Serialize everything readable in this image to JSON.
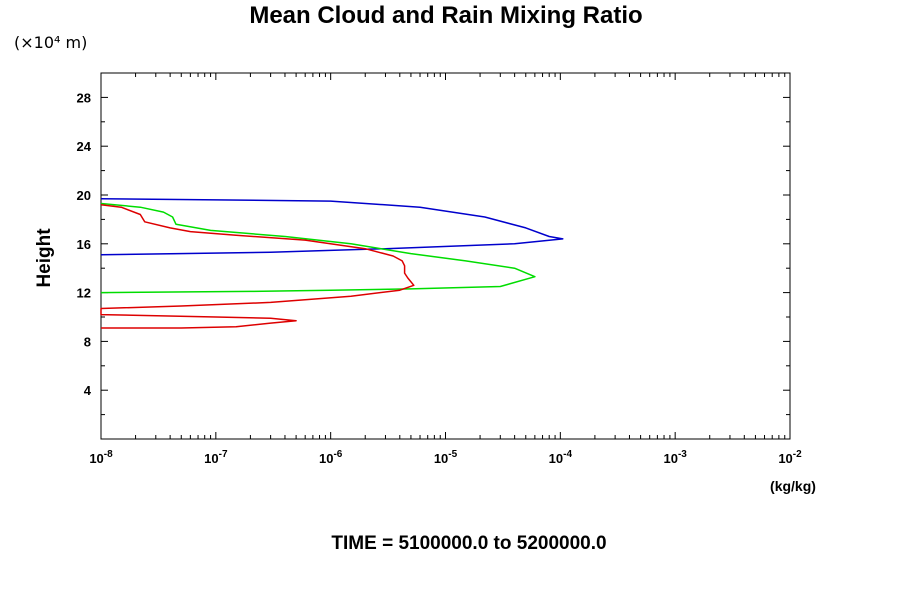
{
  "chart_data": {
    "type": "line",
    "title": "Mean Cloud and Rain Mixing Ratio",
    "y_unit": "(×10⁴ m)",
    "ylabel": "Height",
    "x_unit": "(kg/kg)",
    "x_scale": "log",
    "footer": "TIME = 5100000.0 to 5200000.0",
    "xlim": [
      1e-08,
      0.01
    ],
    "ylim": [
      0,
      30
    ],
    "x_ticks": [
      {
        "base": "10",
        "exp": "-8",
        "value": 1e-08
      },
      {
        "base": "10",
        "exp": "-7",
        "value": 1e-07
      },
      {
        "base": "10",
        "exp": "-6",
        "value": 1e-06
      },
      {
        "base": "10",
        "exp": "-5",
        "value": 1e-05
      },
      {
        "base": "10",
        "exp": "-4",
        "value": 0.0001
      },
      {
        "base": "10",
        "exp": "-3",
        "value": 0.001
      },
      {
        "base": "10",
        "exp": "-2",
        "value": 0.01
      }
    ],
    "y_ticks": [
      {
        "label": "4",
        "value": 4
      },
      {
        "label": "8",
        "value": 8
      },
      {
        "label": "12",
        "value": 12
      },
      {
        "label": "16",
        "value": 16
      },
      {
        "label": "20",
        "value": 20
      },
      {
        "label": "24",
        "value": 24
      },
      {
        "label": "28",
        "value": 28
      }
    ],
    "series": [
      {
        "color": "#0000cc",
        "points": [
          [
            1e-08,
            19.7
          ],
          [
            1e-06,
            19.5
          ],
          [
            6e-06,
            19.0
          ],
          [
            2.2e-05,
            18.2
          ],
          [
            5e-05,
            17.3
          ],
          [
            8e-05,
            16.6
          ],
          [
            0.000105,
            16.4
          ],
          [
            4e-05,
            16.0
          ],
          [
            3e-06,
            15.6
          ],
          [
            3e-07,
            15.3
          ],
          [
            1e-08,
            15.1
          ]
        ]
      },
      {
        "color": "#00dd00",
        "points": [
          [
            1e-08,
            19.3
          ],
          [
            2.2e-08,
            19.0
          ],
          [
            3.5e-08,
            18.6
          ],
          [
            4.2e-08,
            18.2
          ],
          [
            4.5e-08,
            17.6
          ],
          [
            9e-08,
            17.1
          ],
          [
            4e-07,
            16.6
          ],
          [
            1.5e-06,
            16.0
          ],
          [
            5e-06,
            15.2
          ],
          [
            1.5e-05,
            14.6
          ],
          [
            4e-05,
            14.0
          ],
          [
            6e-05,
            13.3
          ],
          [
            3e-05,
            12.5
          ],
          [
            5e-06,
            12.3
          ],
          [
            1e-06,
            12.2
          ],
          [
            2e-07,
            12.1
          ],
          [
            1e-08,
            12.0
          ]
        ]
      },
      {
        "color": "#dd0000",
        "points": [
          [
            1e-08,
            19.2
          ],
          [
            1.5e-08,
            19.0
          ],
          [
            2.2e-08,
            18.4
          ],
          [
            2.4e-08,
            17.8
          ],
          [
            4e-08,
            17.3
          ],
          [
            6e-08,
            17.0
          ],
          [
            1.5e-07,
            16.7
          ],
          [
            6e-07,
            16.3
          ],
          [
            2e-06,
            15.6
          ],
          [
            3.5e-06,
            15.0
          ],
          [
            4.2e-06,
            14.6
          ],
          [
            4.4e-06,
            14.2
          ],
          [
            4.4e-06,
            13.6
          ],
          [
            4.7e-06,
            13.2
          ],
          [
            5.3e-06,
            12.6
          ],
          [
            4e-06,
            12.2
          ],
          [
            1.5e-06,
            11.7
          ],
          [
            3e-07,
            11.2
          ],
          [
            5e-08,
            10.9
          ],
          [
            1e-08,
            10.7
          ],
          [
            1e-08,
            10.2
          ],
          [
            1e-07,
            10.0
          ],
          [
            3e-07,
            9.9
          ],
          [
            5e-07,
            9.7
          ],
          [
            3e-07,
            9.5
          ],
          [
            1.5e-07,
            9.2
          ],
          [
            5e-08,
            9.1
          ],
          [
            1e-08,
            9.1
          ]
        ]
      }
    ]
  }
}
